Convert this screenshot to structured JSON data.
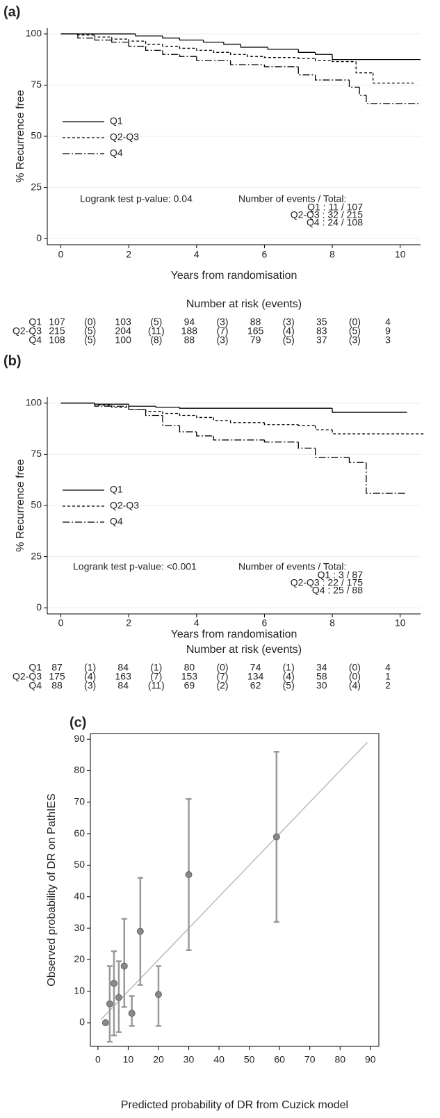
{
  "chart_data": [
    {
      "type": "step",
      "panel_label": "(a)",
      "xlabel": "Years from randomisation",
      "ylabel": "% Recurrence free",
      "xlim": [
        -0.4,
        10.6
      ],
      "ylim": [
        -3,
        103
      ],
      "xticks": [
        0,
        2,
        4,
        6,
        8,
        10
      ],
      "yticks": [
        0,
        25,
        50,
        75,
        100
      ],
      "grid": true,
      "series": [
        {
          "name": "Q1",
          "color": "#000000",
          "dash": "solid",
          "x": [
            0,
            2.2,
            3.0,
            3.5,
            4.2,
            4.8,
            5.3,
            6.1,
            7.0,
            7.5,
            8.0,
            10.6
          ],
          "values": [
            100,
            99,
            98,
            97,
            96,
            95,
            93.5,
            92.5,
            91,
            90,
            87.5,
            87.5
          ]
        },
        {
          "name": "Q2-Q3",
          "color": "#000000",
          "dash": "dash",
          "x": [
            0,
            0.5,
            1,
            1.5,
            2,
            2.5,
            3,
            3.5,
            4,
            4.5,
            5,
            5.5,
            6,
            7,
            7.5,
            8,
            8.7,
            9.2,
            10.4
          ],
          "values": [
            100,
            99.5,
            98.5,
            97.5,
            96.5,
            95,
            94,
            93,
            92,
            91,
            90,
            89,
            88.5,
            88,
            87,
            86.5,
            81,
            76,
            76
          ]
        },
        {
          "name": "Q4",
          "color": "#000000",
          "dash": "dashdot",
          "x": [
            0,
            0.5,
            1,
            1.5,
            2,
            2.5,
            3,
            3.5,
            4,
            5,
            6,
            7,
            7.5,
            8.5,
            8.8,
            9,
            10.6
          ],
          "values": [
            100,
            98,
            97,
            96,
            94,
            92,
            90,
            89,
            87,
            85,
            84,
            80,
            77.5,
            74,
            70,
            66,
            66
          ]
        }
      ],
      "annotation": "Logrank test p-value: 0.04",
      "events_title": "Number of events / Total:",
      "events": [
        "Q1 : 11 / 107",
        "Q2-Q3 : 32 / 215",
        "Q4 : 24 / 108"
      ],
      "risk_table": {
        "title": "Number at risk (events)",
        "rows": [
          {
            "label": "Q1",
            "cells": [
              "107",
              "(0)",
              "103",
              "(5)",
              "94",
              "(3)",
              "88",
              "(3)",
              "35",
              "(0)",
              "4"
            ]
          },
          {
            "label": "Q2-Q3",
            "cells": [
              "215",
              "(5)",
              "204",
              "(11)",
              "188",
              "(7)",
              "165",
              "(4)",
              "83",
              "(5)",
              "9"
            ]
          },
          {
            "label": "Q4",
            "cells": [
              "108",
              "(5)",
              "100",
              "(8)",
              "88",
              "(3)",
              "79",
              "(5)",
              "37",
              "(3)",
              "3"
            ]
          }
        ]
      }
    },
    {
      "type": "step",
      "panel_label": "(b)",
      "xlabel": "Years from randomisation",
      "ylabel": "% Recurrence free",
      "xlim": [
        -0.4,
        10.6
      ],
      "ylim": [
        -3,
        103
      ],
      "xticks": [
        0,
        2,
        4,
        6,
        8,
        10
      ],
      "yticks": [
        0,
        25,
        50,
        75,
        100
      ],
      "grid": true,
      "series": [
        {
          "name": "Q1",
          "color": "#000000",
          "dash": "solid",
          "x": [
            0,
            1,
            2,
            2.8,
            3.5,
            8,
            10.2
          ],
          "values": [
            100,
            99.5,
            98.5,
            98,
            97.5,
            95.5,
            95.5
          ]
        },
        {
          "name": "Q2-Q3",
          "color": "#000000",
          "dash": "dash",
          "x": [
            0,
            1,
            1.5,
            2,
            2.5,
            3,
            3.5,
            4,
            4.5,
            5,
            6,
            7,
            7.5,
            8,
            10.7
          ],
          "values": [
            100,
            99,
            98,
            97,
            96,
            95,
            94,
            93,
            91.5,
            90.5,
            89.5,
            89,
            87,
            85,
            85
          ]
        },
        {
          "name": "Q4",
          "color": "#000000",
          "dash": "dashdot",
          "x": [
            0,
            1,
            2,
            2.5,
            3,
            3.5,
            4,
            4.5,
            6,
            7,
            7.5,
            8.5,
            9,
            10.2
          ],
          "values": [
            100,
            98.5,
            97,
            94,
            89,
            86,
            84,
            82,
            81,
            78,
            73.5,
            71,
            56,
            56
          ]
        }
      ],
      "annotation": "Logrank test p-value: <0.001",
      "events_title": "Number of events / Total:",
      "events": [
        "Q1 : 3 / 87",
        "Q2-Q3 : 22 / 175",
        "Q4 : 25 / 88"
      ],
      "risk_table": {
        "title": "Number at risk (events)",
        "rows": [
          {
            "label": "Q1",
            "cells": [
              "87",
              "(1)",
              "84",
              "(1)",
              "80",
              "(0)",
              "74",
              "(1)",
              "34",
              "(0)",
              "4"
            ]
          },
          {
            "label": "Q2-Q3",
            "cells": [
              "175",
              "(4)",
              "163",
              "(7)",
              "153",
              "(7)",
              "134",
              "(4)",
              "58",
              "(0)",
              "1"
            ]
          },
          {
            "label": "Q4",
            "cells": [
              "88",
              "(3)",
              "84",
              "(11)",
              "69",
              "(2)",
              "62",
              "(5)",
              "30",
              "(4)",
              "2"
            ]
          }
        ]
      }
    },
    {
      "type": "errorbar",
      "panel_label": "(c)",
      "xlabel": "Predicted probability of DR from Cuzick model",
      "ylabel": "Observed probability of DR on PathIES",
      "xlim": [
        -2.5,
        92.8
      ],
      "ylim": [
        -7.5,
        91.8
      ],
      "xticks": [
        0,
        10,
        20,
        30,
        40,
        50,
        60,
        70,
        80,
        90
      ],
      "yticks": [
        0,
        10,
        20,
        30,
        40,
        50,
        60,
        70,
        80,
        90
      ],
      "point_color": "#888888",
      "bar_color": "#999999",
      "x": [
        2.5,
        3.9,
        5.3,
        6.9,
        8.7,
        11.2,
        14,
        20,
        30,
        59
      ],
      "values": [
        0,
        6,
        12.5,
        8,
        18,
        3,
        29,
        9,
        47,
        59
      ],
      "lower": [
        0,
        -6,
        -4,
        -3,
        5,
        -1,
        12,
        -1,
        23,
        32
      ],
      "upper": [
        0,
        18,
        22.7,
        19.5,
        33,
        8.5,
        46,
        18,
        71,
        86
      ],
      "reference_line": {
        "x": [
          1,
          89
        ],
        "y": [
          1,
          89
        ],
        "color": "#bbbbbb"
      }
    }
  ]
}
